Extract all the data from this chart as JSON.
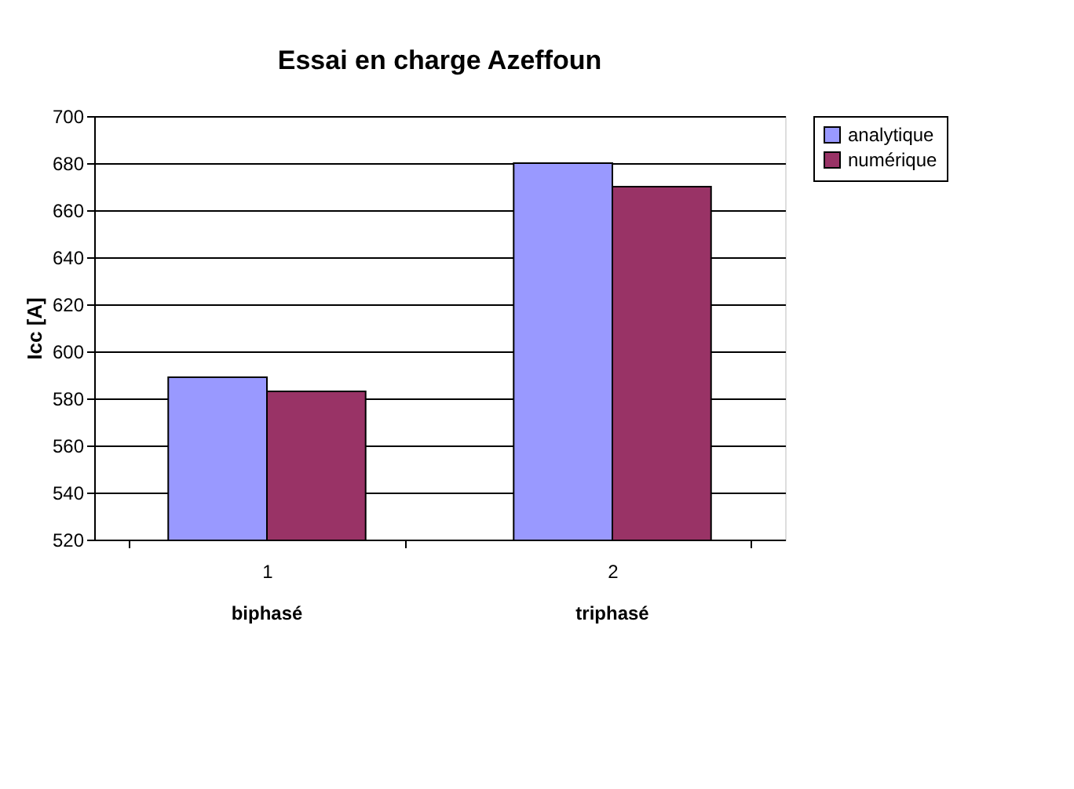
{
  "chart_data": {
    "type": "bar",
    "title": "Essai en charge Azeffoun",
    "ylabel": "Icc [A]",
    "categories": [
      "1",
      "2"
    ],
    "series": [
      {
        "name": "analytique",
        "color": "#9999ff",
        "values": [
          589,
          680
        ]
      },
      {
        "name": "numérique",
        "color": "#993366",
        "values": [
          583,
          670
        ]
      }
    ],
    "ylim": [
      520,
      700
    ],
    "yticks": [
      520,
      540,
      560,
      580,
      600,
      620,
      640,
      660,
      680,
      700
    ],
    "grid": "y",
    "legend": "right",
    "annotations": [
      {
        "text": "biphasé",
        "x": "1"
      },
      {
        "text": "triphasé",
        "x": "2"
      }
    ]
  }
}
